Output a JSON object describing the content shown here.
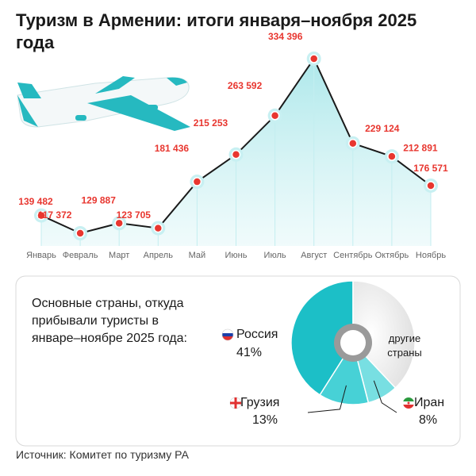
{
  "source": "Источник: Комитет по туризму РА",
  "chart_data": [
    {
      "type": "line",
      "title": "Туризм в Армении: итоги января–ноября 2025 года",
      "categories": [
        "Январь",
        "Февраль",
        "Март",
        "Апрель",
        "Май",
        "Июнь",
        "Июль",
        "Август",
        "Сентябрь",
        "Октябрь",
        "Ноябрь"
      ],
      "values": [
        139482,
        117372,
        129887,
        123705,
        181436,
        215253,
        263592,
        334396,
        229124,
        212891,
        176571
      ],
      "value_labels": [
        "139 482",
        "117 372",
        "129 887",
        "123 705",
        "181 436",
        "215 253",
        "263 592",
        "334 396",
        "229 124",
        "212 891",
        "176 571"
      ],
      "color": "#1a1a1a",
      "marker_color": "#e8362f",
      "area_color": "#8fe0e4"
    },
    {
      "type": "pie",
      "title": "Основные страны, откуда прибывали туристы в январе–ноябре 2025 года:",
      "categories": [
        "Россия",
        "Грузия",
        "Иран",
        "другие страны"
      ],
      "values": [
        41,
        13,
        8,
        38
      ],
      "value_labels": [
        "41%",
        "13%",
        "8%",
        null
      ],
      "colors": [
        "#1cbfc7",
        "#47d1d6",
        "#78dfe2",
        "#e4e4e4"
      ]
    }
  ]
}
